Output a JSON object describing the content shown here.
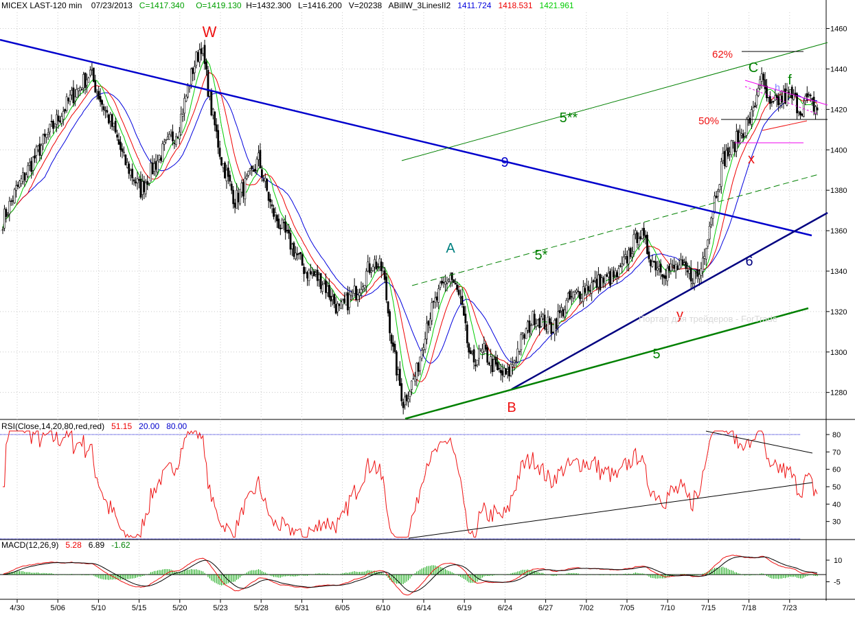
{
  "header": {
    "symbol": "MICEX LAST-120 min",
    "date": "07/23/2013",
    "close": "C=1417.340",
    "open": "O=1419.130",
    "high": "H=1432.300",
    "low": "L=1416.200",
    "volume": "V=20238",
    "indicator_name": "ABillW_3LinesII2",
    "ind_blue": "1411.724",
    "ind_red": "1418.531",
    "ind_green": "1421.961"
  },
  "rsi_header": {
    "name": "RSI(Close,14,20,80,red,red)",
    "value": "51.15",
    "low": "20.00",
    "high": "80.00"
  },
  "macd_header": {
    "name": "MACD(12,26,9)",
    "macd": "5.28",
    "signal": "6.89",
    "hist": "-1.62"
  },
  "watermark": "Портал для трейдеров - ForTrade",
  "colors": {
    "up": "#ffffff",
    "down": "#000000",
    "blue_line": "#0000cc",
    "green_line": "#008000",
    "red": "#ee1111",
    "navy": "#000080",
    "teal": "#008080",
    "magenta": "#ee00ee",
    "grid": "#c8c8c8"
  },
  "chart_data": [
    {
      "type": "candlestick",
      "title": "MICEX LAST-120 min",
      "x_tick_labels": [
        "4/30",
        "5/06",
        "5/10",
        "5/15",
        "5/20",
        "5/23",
        "5/28",
        "5/31",
        "6/05",
        "6/10",
        "6/14",
        "6/19",
        "6/24",
        "6/27",
        "7/02",
        "7/05",
        "7/10",
        "7/15",
        "7/18",
        "7/23"
      ],
      "y_ticks": [
        1280,
        1300,
        1320,
        1340,
        1360,
        1380,
        1400,
        1420,
        1440,
        1460
      ],
      "ylim": [
        1268,
        1468
      ],
      "key_closes": [
        [
          0,
          1365
        ],
        [
          8,
          1380
        ],
        [
          25,
          1405
        ],
        [
          40,
          1425
        ],
        [
          52,
          1438
        ],
        [
          58,
          1425
        ],
        [
          66,
          1410
        ],
        [
          72,
          1395
        ],
        [
          82,
          1380
        ],
        [
          94,
          1398
        ],
        [
          104,
          1410
        ],
        [
          113,
          1440
        ],
        [
          118,
          1452
        ],
        [
          124,
          1420
        ],
        [
          130,
          1395
        ],
        [
          138,
          1375
        ],
        [
          146,
          1385
        ],
        [
          152,
          1395
        ],
        [
          160,
          1370
        ],
        [
          170,
          1355
        ],
        [
          180,
          1340
        ],
        [
          190,
          1335
        ],
        [
          200,
          1320
        ],
        [
          210,
          1330
        ],
        [
          220,
          1345
        ],
        [
          226,
          1340
        ],
        [
          232,
          1300
        ],
        [
          238,
          1275
        ],
        [
          246,
          1290
        ],
        [
          252,
          1315
        ],
        [
          260,
          1330
        ],
        [
          266,
          1338
        ],
        [
          272,
          1325
        ],
        [
          278,
          1295
        ],
        [
          286,
          1300
        ],
        [
          294,
          1290
        ],
        [
          300,
          1288
        ],
        [
          308,
          1305
        ],
        [
          316,
          1318
        ],
        [
          326,
          1312
        ],
        [
          336,
          1325
        ],
        [
          346,
          1332
        ],
        [
          356,
          1335
        ],
        [
          366,
          1338
        ],
        [
          374,
          1352
        ],
        [
          378,
          1360
        ],
        [
          386,
          1345
        ],
        [
          394,
          1340
        ],
        [
          402,
          1342
        ],
        [
          408,
          1338
        ],
        [
          414,
          1338
        ],
        [
          422,
          1372
        ],
        [
          428,
          1395
        ],
        [
          434,
          1402
        ],
        [
          440,
          1410
        ],
        [
          446,
          1418
        ],
        [
          450,
          1437
        ],
        [
          456,
          1420
        ],
        [
          462,
          1425
        ],
        [
          468,
          1427
        ],
        [
          474,
          1420
        ],
        [
          478,
          1425
        ],
        [
          484,
          1420
        ]
      ]
    },
    {
      "type": "line",
      "title": "RSI(Close,14,20,80,red,red)",
      "y_ticks": [
        30,
        40,
        50,
        60,
        70,
        80
      ],
      "levels": [
        20,
        80
      ],
      "current": 51.15
    },
    {
      "type": "line",
      "title": "MACD(12,26,9)",
      "y_ticks": [
        -5,
        10
      ],
      "macd": 5.28,
      "signal": 6.89,
      "histogram": -1.62
    }
  ],
  "annotations": {
    "w": "W",
    "a": "A",
    "b": "B",
    "c": "C",
    "f": "f",
    "h": "h",
    "x": "x",
    "y": "y",
    "n5": "5",
    "n5s": "5*",
    "n5ss": "5**",
    "n6": "6",
    "n9": "9",
    "pct62": "62%",
    "pct50": "50%"
  }
}
